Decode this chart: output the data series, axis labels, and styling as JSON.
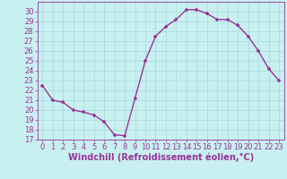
{
  "x": [
    0,
    1,
    2,
    3,
    4,
    5,
    6,
    7,
    8,
    9,
    10,
    11,
    12,
    13,
    14,
    15,
    16,
    17,
    18,
    19,
    20,
    21,
    22,
    23
  ],
  "y": [
    22.5,
    21.0,
    20.8,
    20.0,
    19.8,
    19.5,
    18.8,
    17.5,
    17.4,
    21.2,
    25.0,
    27.5,
    28.5,
    29.2,
    30.2,
    30.2,
    29.8,
    29.2,
    29.2,
    28.6,
    27.5,
    26.0,
    24.2,
    23.0
  ],
  "line_color": "#993399",
  "marker": "+",
  "marker_color": "#993399",
  "xlabel": "Windchill (Refroidissement éolien,°C)",
  "xlim": [
    -0.5,
    23.5
  ],
  "ylim": [
    17,
    31
  ],
  "yticks": [
    17,
    18,
    19,
    20,
    21,
    22,
    23,
    24,
    25,
    26,
    27,
    28,
    29,
    30
  ],
  "xticks": [
    0,
    1,
    2,
    3,
    4,
    5,
    6,
    7,
    8,
    9,
    10,
    11,
    12,
    13,
    14,
    15,
    16,
    17,
    18,
    19,
    20,
    21,
    22,
    23
  ],
  "bg_color": "#c8f0f0",
  "grid_color": "#aadddd",
  "tick_color": "#993399",
  "label_color": "#993399",
  "tick_fontsize": 6,
  "xlabel_fontsize": 7
}
